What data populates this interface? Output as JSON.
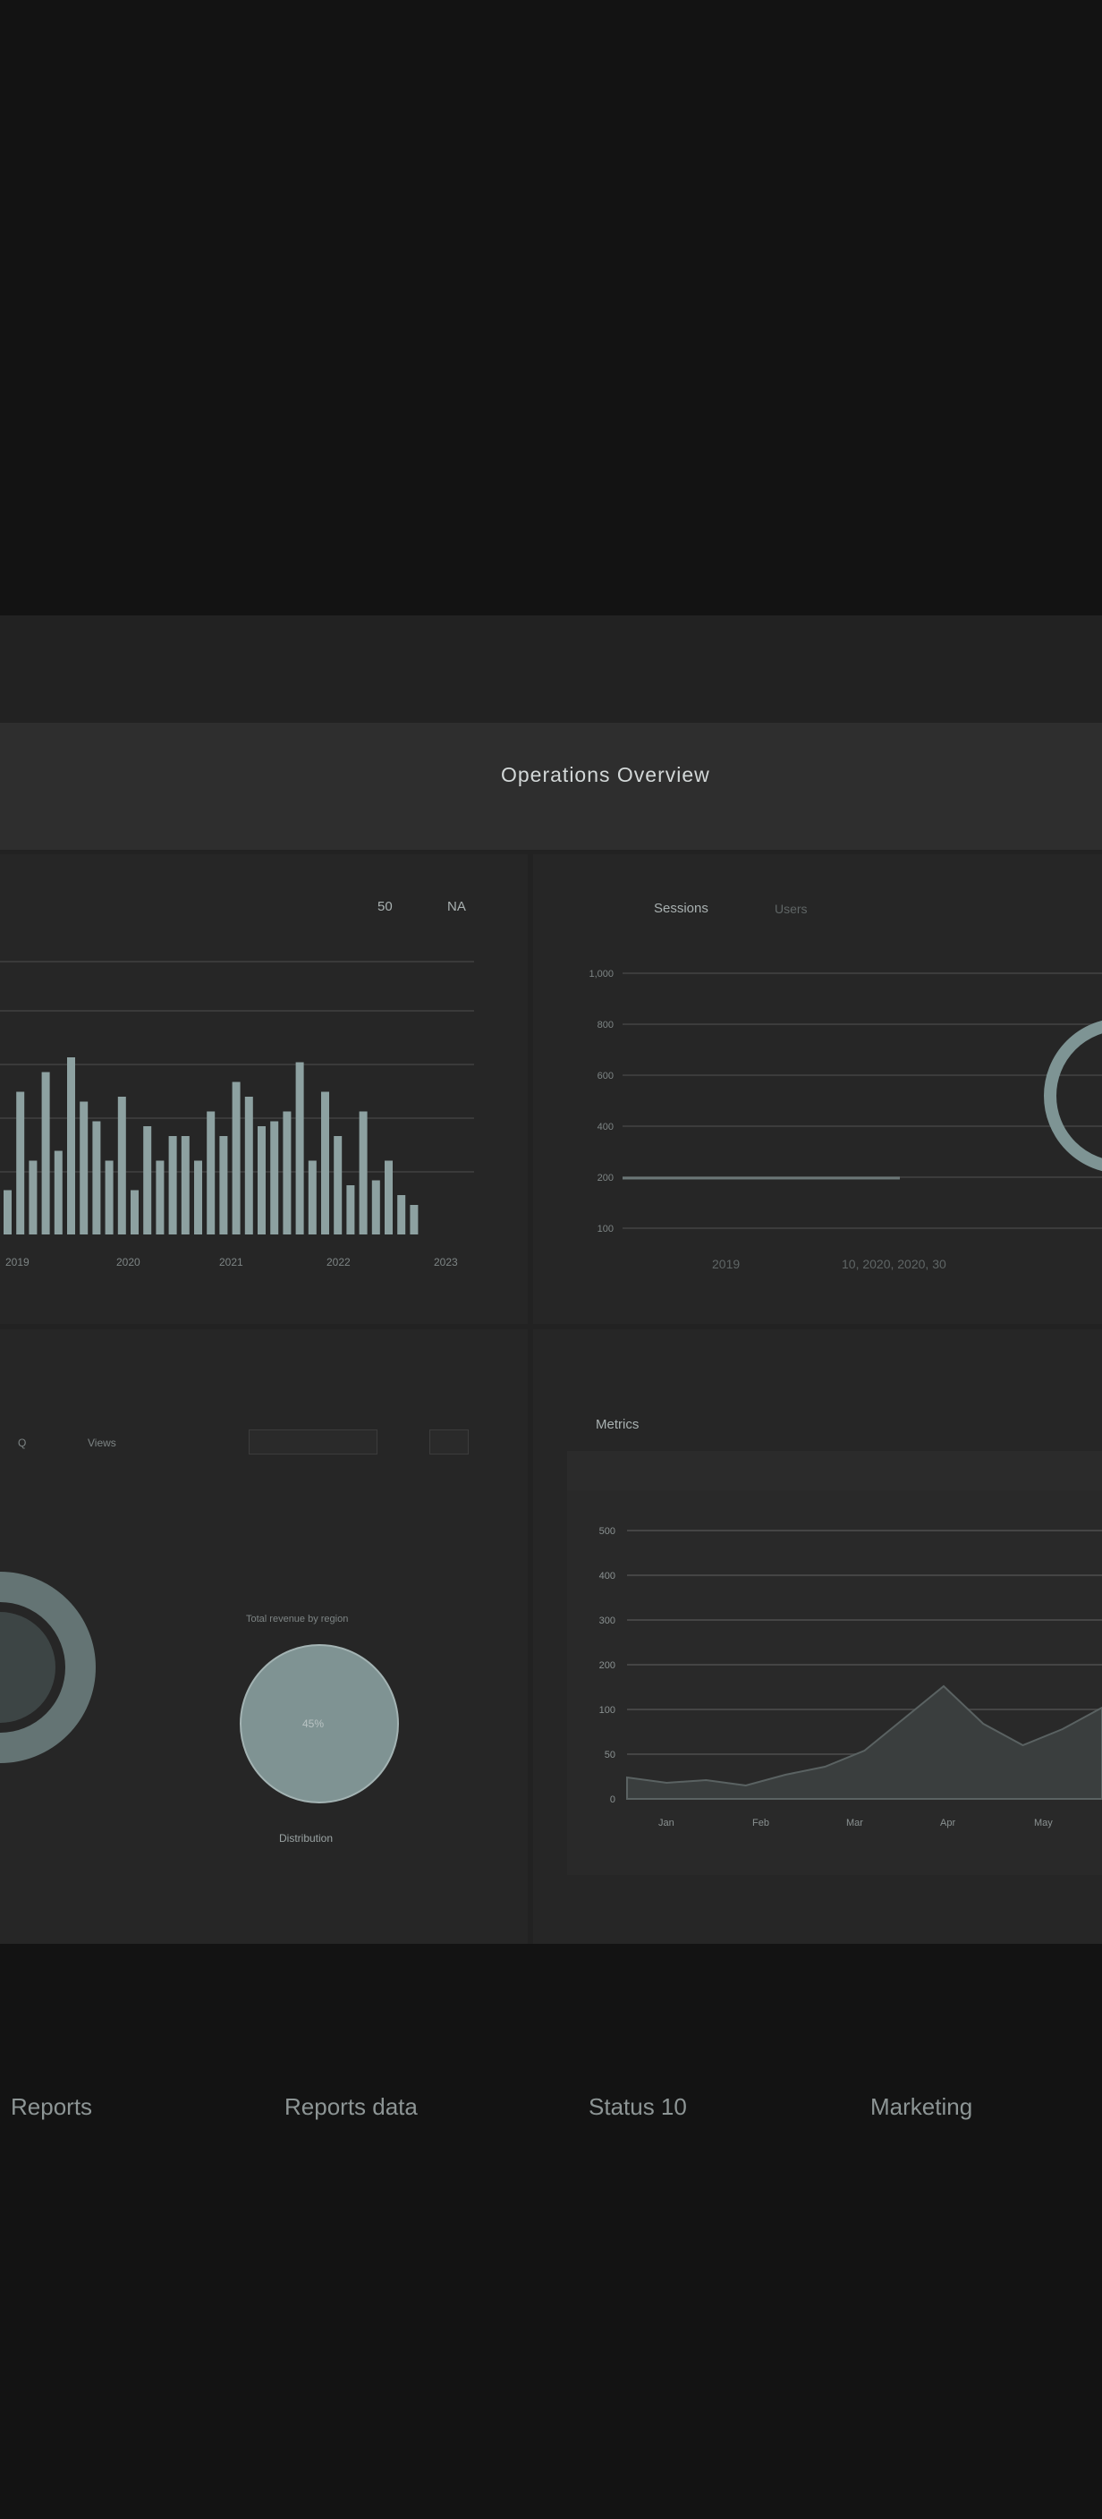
{
  "header": {
    "title": "Operations Overview"
  },
  "bar_panel": {
    "controls": [
      "50",
      "NA"
    ]
  },
  "line_panel": {
    "tabs": [
      "Sessions",
      "Users"
    ],
    "x_labels": [
      "2019",
      "10, 2020, 2020, 30"
    ]
  },
  "donut_panel": {
    "controls": [
      "Q",
      "Views"
    ],
    "pie_label": "Total revenue by region",
    "pie_center": "45%",
    "pie_caption": "Distribution"
  },
  "area_panel": {
    "title": "Metrics"
  },
  "footer": {
    "items": [
      "Reports",
      "Reports data",
      "Status 10",
      "Marketing"
    ]
  },
  "colors": {
    "accent": "#7e9494",
    "bar_fill": "#8da1a1",
    "background": "#131313",
    "panel": "#262626"
  },
  "chart_data": [
    {
      "type": "bar",
      "values": [
        18,
        58,
        30,
        66,
        34,
        72,
        54,
        46,
        30,
        56,
        18,
        44,
        30,
        40,
        40,
        30,
        50,
        40,
        62,
        56,
        44,
        46,
        50,
        70,
        30,
        58,
        40,
        20,
        50,
        22,
        30,
        16,
        12
      ],
      "x_tick_labels": [
        "2019",
        "2020",
        "2021",
        "2022",
        "2023"
      ],
      "grid": true
    },
    {
      "type": "line",
      "y_tick_labels": [
        "1,000",
        "800",
        "600",
        "400",
        "200",
        "100"
      ],
      "grid": true
    },
    {
      "type": "area",
      "y_tick_labels": [
        "500",
        "400",
        "300",
        "200",
        "100",
        "50",
        "0"
      ],
      "x_tick_labels": [
        "Jan",
        "Feb",
        "Mar",
        "Apr",
        "May"
      ],
      "values": [
        8,
        6,
        7,
        5,
        9,
        12,
        18,
        30,
        42,
        28,
        20,
        26,
        34
      ],
      "grid": true
    }
  ]
}
